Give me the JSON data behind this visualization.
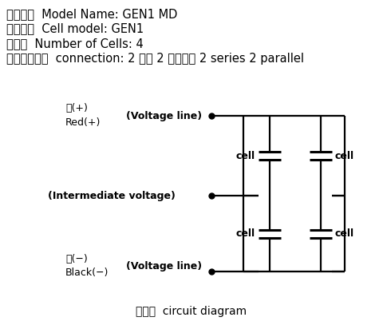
{
  "title_lines": [
    "モデル名  Model Name: GEN1 MD",
    "セル仕様  Cell model: GEN1",
    "セル数  Number of Cells: 4",
    "直並列接続数  connection: 2 直列 2 並列，　 2 series 2 parallel"
  ],
  "label_red_jp": "赤(+)",
  "label_red_en": "Red(+)",
  "label_voltage_top": "(Voltage line)",
  "label_intermediate": "(Intermediate voltage)",
  "label_black_jp": "黒(−)",
  "label_black_en": "Black(−)",
  "label_voltage_bot": "(Voltage line)",
  "label_caption_jp": "回路図",
  "label_caption_en": "circuit diagram",
  "cell_label": "cell",
  "bg_color": "#ffffff",
  "line_color": "#000000",
  "text_color": "#000000",
  "fontsize_header": 10.5,
  "fontsize_label": 9,
  "fontsize_cell": 9,
  "fontsize_caption": 10
}
